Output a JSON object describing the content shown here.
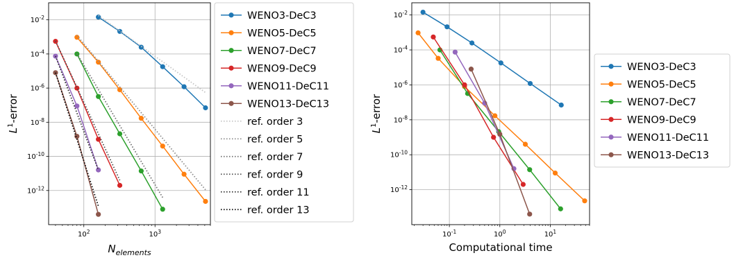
{
  "chart_data": [
    {
      "type": "line",
      "xscale": "log",
      "yscale": "log",
      "xlim": [
        32,
        6000
      ],
      "ylim": [
        1e-14,
        0.1
      ],
      "grid": true,
      "xlabel_base": "N",
      "xlabel_sub": "elements",
      "ylabel_base": "L",
      "ylabel_sup": "1",
      "ylabel_rest": "-error",
      "xticks": [
        {
          "value": 100,
          "base": "10",
          "exp": "2"
        },
        {
          "value": 1000,
          "base": "10",
          "exp": "3"
        }
      ],
      "yticks": [
        {
          "value": 1e-12,
          "base": "10",
          "exp": "-12"
        },
        {
          "value": 1e-10,
          "base": "10",
          "exp": "-10"
        },
        {
          "value": 1e-08,
          "base": "10",
          "exp": "-8"
        },
        {
          "value": 1e-06,
          "base": "10",
          "exp": "-6"
        },
        {
          "value": 0.0001,
          "base": "10",
          "exp": "-4"
        },
        {
          "value": 0.01,
          "base": "10",
          "exp": "-2"
        }
      ],
      "legend_position": "outside-right-top",
      "series": [
        {
          "name": "WENO3-DeC3",
          "color": "#1f77b4",
          "style": "solid-marker",
          "x": [
            160,
            320,
            640,
            1280,
            2560,
            5120
          ],
          "y": [
            0.0145,
            0.0021,
            0.00025,
            1.8e-05,
            1.2e-06,
            7e-08
          ]
        },
        {
          "name": "WENO5-DeC5",
          "color": "#ff7f0e",
          "style": "solid-marker",
          "x": [
            80,
            160,
            320,
            640,
            1280,
            2560,
            5120
          ],
          "y": [
            0.00095,
            3.3e-05,
            8e-07,
            1.7e-08,
            4e-10,
            9e-12,
            2.3e-13
          ]
        },
        {
          "name": "WENO7-DeC7",
          "color": "#2ca02c",
          "style": "solid-marker",
          "x": [
            80,
            160,
            320,
            640,
            1280
          ],
          "y": [
            0.0001,
            3.2e-07,
            2.1e-09,
            1.4e-11,
            8e-14
          ]
        },
        {
          "name": "WENO9-DeC9",
          "color": "#d62728",
          "style": "solid-marker",
          "x": [
            40,
            80,
            160,
            320
          ],
          "y": [
            0.00055,
            1e-06,
            1e-09,
            2e-12
          ]
        },
        {
          "name": "WENO11-DeC11",
          "color": "#9467bd",
          "style": "solid-marker",
          "x": [
            40,
            80,
            160
          ],
          "y": [
            7.5e-05,
            9e-08,
            1.6e-11
          ]
        },
        {
          "name": "WENO13-DeC13",
          "color": "#8c564b",
          "style": "solid-marker",
          "x": [
            40,
            80,
            160
          ],
          "y": [
            8e-06,
            1.5e-09,
            4e-14
          ]
        },
        {
          "name": "ref. order 3",
          "color": "#c4c4c4",
          "style": "dotted",
          "x": [
            160,
            5120
          ],
          "y": [
            0.018,
            5.5e-07
          ]
        },
        {
          "name": "ref. order 5",
          "color": "#8c8c8c",
          "style": "dotted",
          "x": [
            80,
            5120
          ],
          "y": [
            0.0012,
            1.1e-12
          ]
        },
        {
          "name": "ref. order 7",
          "color": "#6e6e6e",
          "style": "dotted",
          "x": [
            80,
            1280
          ],
          "y": [
            0.000105,
            3.9e-13
          ]
        },
        {
          "name": "ref. order 9",
          "color": "#4a4a4a",
          "style": "dotted",
          "x": [
            40,
            320
          ],
          "y": [
            0.00058,
            4e-12
          ]
        },
        {
          "name": "ref. order 11",
          "color": "#2b2b2b",
          "style": "dotted",
          "x": [
            40,
            160
          ],
          "y": [
            7.5e-05,
            1.6e-11
          ]
        },
        {
          "name": "ref. order 13",
          "color": "#000000",
          "style": "dotted",
          "x": [
            40,
            160
          ],
          "y": [
            8e-06,
            1.2e-13
          ]
        }
      ]
    },
    {
      "type": "line",
      "xscale": "log",
      "yscale": "log",
      "xlim": [
        0.018,
        60
      ],
      "ylim": [
        1e-14,
        0.05
      ],
      "grid": true,
      "xlabel": "Computational time",
      "ylabel_base": "L",
      "ylabel_sup": "1",
      "ylabel_rest": "-error",
      "xticks": [
        {
          "value": 0.1,
          "base": "10",
          "exp": "-1"
        },
        {
          "value": 1,
          "base": "10",
          "exp": "0"
        },
        {
          "value": 10,
          "base": "10",
          "exp": "1"
        }
      ],
      "yticks": [
        {
          "value": 1e-12,
          "base": "10",
          "exp": "-12"
        },
        {
          "value": 1e-10,
          "base": "10",
          "exp": "-10"
        },
        {
          "value": 1e-08,
          "base": "10",
          "exp": "-8"
        },
        {
          "value": 1e-06,
          "base": "10",
          "exp": "-6"
        },
        {
          "value": 0.0001,
          "base": "10",
          "exp": "-4"
        },
        {
          "value": 0.01,
          "base": "10",
          "exp": "-2"
        }
      ],
      "legend_position": "outside-right-center",
      "series": [
        {
          "name": "WENO3-DeC3",
          "color": "#1f77b4",
          "style": "solid-marker",
          "x": [
            0.03,
            0.09,
            0.28,
            1.05,
            4.0,
            16.5
          ],
          "y": [
            0.0145,
            0.0021,
            0.00025,
            1.8e-05,
            1.2e-06,
            7e-08
          ]
        },
        {
          "name": "WENO5-DeC5",
          "color": "#ff7f0e",
          "style": "solid-marker",
          "x": [
            0.024,
            0.06,
            0.2,
            0.8,
            3.2,
            12.5,
            48.0
          ],
          "y": [
            0.00095,
            3.3e-05,
            8e-07,
            1.7e-08,
            4e-10,
            9e-12,
            2.3e-13
          ]
        },
        {
          "name": "WENO7-DeC7",
          "color": "#2ca02c",
          "style": "solid-marker",
          "x": [
            0.065,
            0.23,
            0.95,
            3.9,
            16.0
          ],
          "y": [
            0.0001,
            3.2e-07,
            2.1e-09,
            1.4e-11,
            8e-14
          ]
        },
        {
          "name": "WENO9-DeC9",
          "color": "#d62728",
          "style": "solid-marker",
          "x": [
            0.048,
            0.2,
            0.75,
            2.9
          ],
          "y": [
            0.00055,
            1e-06,
            1e-09,
            2e-12
          ]
        },
        {
          "name": "WENO11-DeC11",
          "color": "#9467bd",
          "style": "solid-marker",
          "x": [
            0.13,
            0.5,
            1.9
          ],
          "y": [
            7.5e-05,
            9e-08,
            1.6e-11
          ]
        },
        {
          "name": "WENO13-DeC13",
          "color": "#8c564b",
          "style": "solid-marker",
          "x": [
            0.27,
            1.0,
            3.9
          ],
          "y": [
            8e-06,
            1.5e-09,
            4e-14
          ]
        }
      ]
    }
  ]
}
